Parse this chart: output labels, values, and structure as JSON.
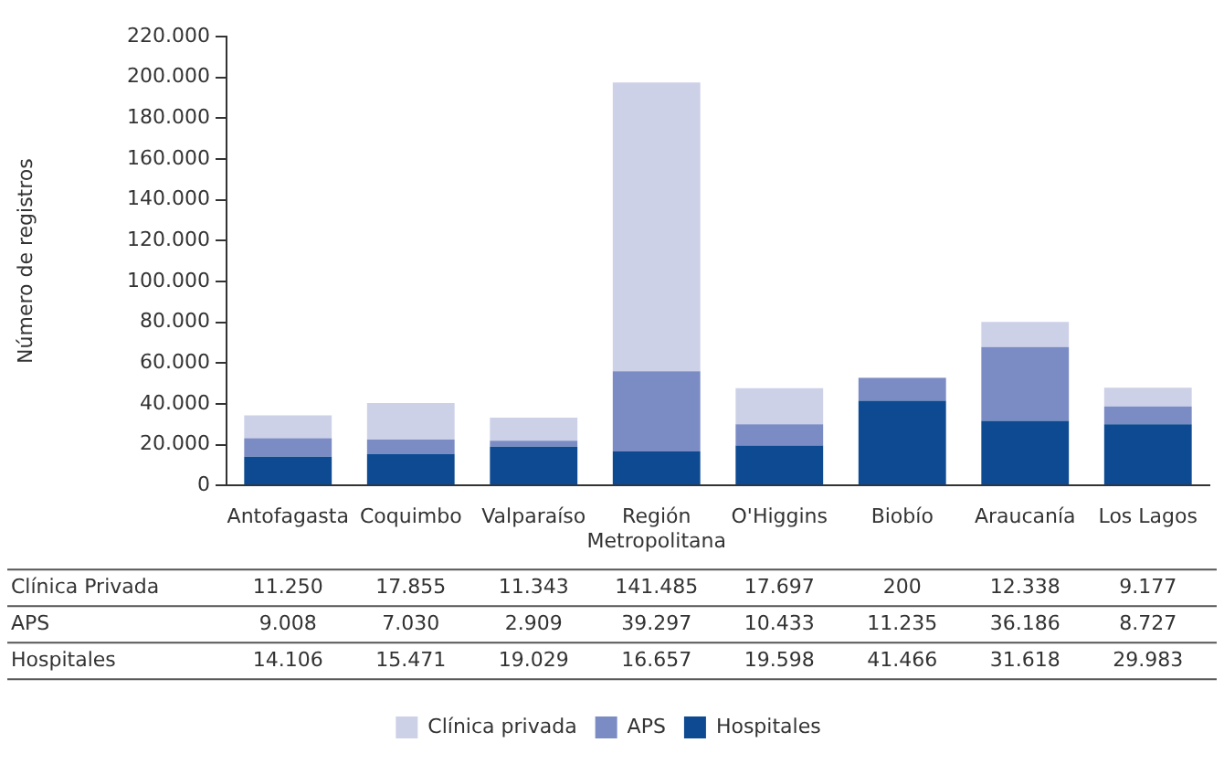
{
  "chart_data": {
    "type": "bar",
    "stacked": true,
    "ylabel": "Número de registros",
    "categories": [
      "Antofagasta",
      "Coquimbo",
      "Valparaíso",
      "Región Metropolitana",
      "O'Higgins",
      "Biobío",
      "Araucanía",
      "Los Lagos"
    ],
    "series": [
      {
        "name": "Hospitales",
        "color": "#0d4a91",
        "values": [
          14106,
          15471,
          19029,
          16657,
          19598,
          41466,
          31618,
          29983
        ],
        "value_labels": [
          "14.106",
          "15.471",
          "19.029",
          "16.657",
          "19.598",
          "41.466",
          "31.618",
          "29.983"
        ]
      },
      {
        "name": "APS",
        "color": "#7b8cc4",
        "values": [
          9008,
          7030,
          2909,
          39297,
          10433,
          11235,
          36186,
          8727
        ],
        "value_labels": [
          "9.008",
          "7.030",
          "2.909",
          "39.297",
          "10.433",
          "11.235",
          "36.186",
          "8.727"
        ]
      },
      {
        "name": "Clínica privada",
        "color": "#cdd1e8",
        "values": [
          11250,
          17855,
          11343,
          141485,
          17697,
          200,
          12338,
          9177
        ],
        "value_labels": [
          "11.250",
          "17.855",
          "11.343",
          "141.485",
          "17.697",
          "200",
          "12.338",
          "9.177"
        ]
      }
    ],
    "ylim": [
      0,
      220000
    ],
    "yticks": [
      0,
      {
        "value": 20000,
        "label": "20.000"
      },
      {
        "value": 40000,
        "label": "40.000"
      },
      {
        "value": 60000,
        "label": "60.000"
      },
      {
        "value": 80000,
        "label": "80.000"
      },
      {
        "value": 100000,
        "label": "100.000"
      },
      {
        "value": 120000,
        "label": "120.000"
      },
      {
        "value": 140000,
        "label": "140.000"
      },
      {
        "value": 160000,
        "label": "160.000"
      },
      {
        "value": 180000,
        "label": "180.000"
      },
      {
        "value": 200000,
        "label": "200.000"
      },
      {
        "value": 220000,
        "label": "220.000"
      }
    ],
    "grid": false,
    "legend": "bottom",
    "annotations": [
      "Hospitales",
      "APS",
      "Clínica Privada"
    ]
  }
}
